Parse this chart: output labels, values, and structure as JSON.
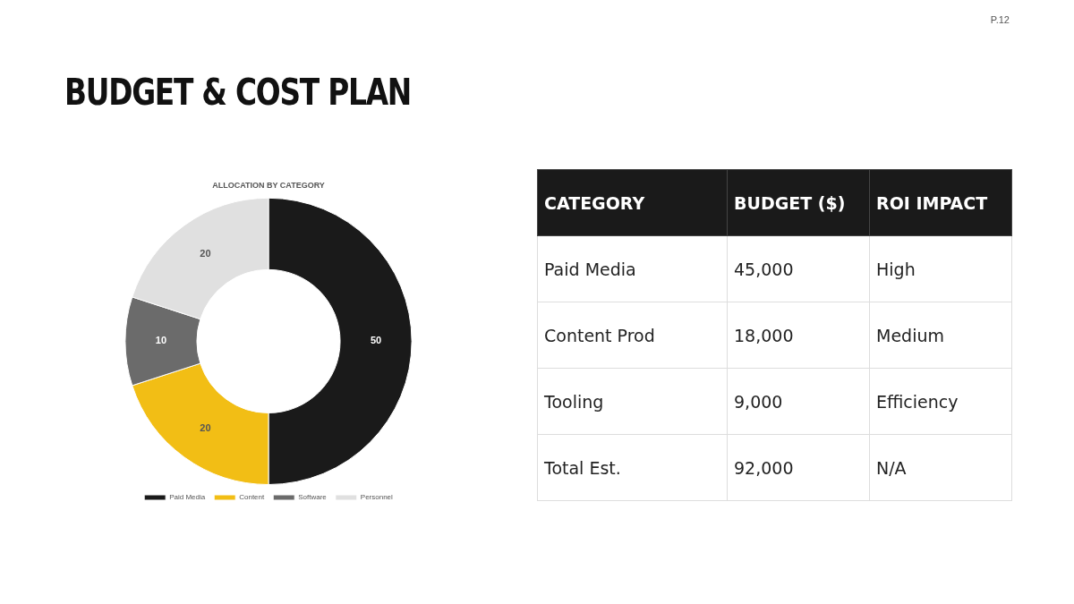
{
  "chart_data": [
    {
      "type": "donut",
      "title": "ALLOCATION BY CATEGORY",
      "annotations": [
        "P.12",
        "BUDGET & COST PLAN"
      ],
      "categories": [
        "Paid Media",
        "Content",
        "Software",
        "Personnel"
      ],
      "values": [
        50,
        20,
        10,
        20
      ],
      "colors": [
        "#1a1a1a",
        "#f2be15",
        "#6b6b6b",
        "#e0e0e0"
      ],
      "data_labels": true,
      "legend": "bottom"
    },
    {
      "type": "other",
      "categories": [
        "CATEGORY",
        "BUDGET ($)",
        "ROI IMPACT"
      ],
      "annotations": [
        "Paid Media",
        "45,000",
        "High",
        "Content Prod",
        "18,000",
        "Medium",
        "Tooling",
        "9,000",
        "Efficiency",
        "Total Est.",
        "92,000",
        "N/A"
      ]
    }
  ]
}
